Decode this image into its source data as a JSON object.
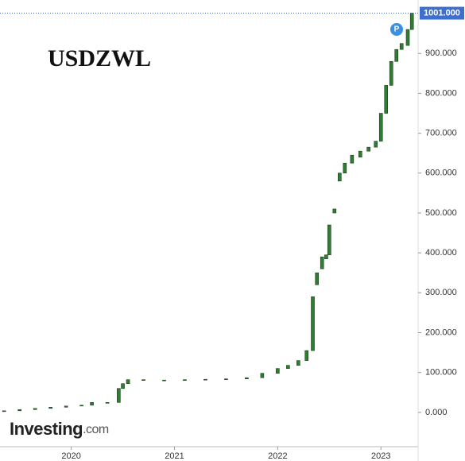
{
  "chart_data": {
    "type": "candlestick",
    "title": "USDZWL",
    "x": [
      2019.35,
      2019.5,
      2019.65,
      2019.8,
      2019.95,
      2020.1,
      2020.2,
      2020.35,
      2020.46,
      2020.5,
      2020.55,
      2020.7,
      2020.9,
      2021.1,
      2021.3,
      2021.5,
      2021.7,
      2021.85,
      2022.0,
      2022.1,
      2022.2,
      2022.28,
      2022.34,
      2022.38,
      2022.43,
      2022.47,
      2022.5,
      2022.55,
      2022.6,
      2022.65,
      2022.72,
      2022.8,
      2022.88,
      2022.95,
      2023.0,
      2023.05,
      2023.1,
      2023.15,
      2023.2,
      2023.26,
      2023.3
    ],
    "open": [
      2,
      4,
      7,
      10,
      13,
      16,
      18,
      25,
      25,
      60,
      72,
      82,
      81,
      81,
      82,
      83,
      84,
      87,
      98,
      110,
      118,
      130,
      155,
      320,
      360,
      385,
      395,
      500,
      580,
      600,
      625,
      640,
      655,
      665,
      680,
      750,
      820,
      880,
      910,
      920,
      960
    ],
    "close": [
      4,
      7,
      10,
      13,
      16,
      18,
      25,
      25,
      60,
      72,
      82,
      81,
      81,
      82,
      83,
      84,
      87,
      98,
      110,
      118,
      130,
      155,
      290,
      350,
      390,
      395,
      470,
      510,
      600,
      625,
      645,
      655,
      665,
      680,
      750,
      820,
      880,
      910,
      925,
      960,
      1001
    ],
    "up_color": "#2e7d32",
    "down_color": "#c62828",
    "xlim": [
      2019.31,
      2023.36
    ],
    "xticks": [
      2020,
      2021,
      2022,
      2023
    ],
    "ylim": [
      -86,
      1034
    ],
    "yticks": [
      {
        "value": 0,
        "label": "0.000"
      },
      {
        "value": 100,
        "label": "100.000"
      },
      {
        "value": 200,
        "label": "200.000"
      },
      {
        "value": 300,
        "label": "300.000"
      },
      {
        "value": 400,
        "label": "400.000"
      },
      {
        "value": 500,
        "label": "500.000"
      },
      {
        "value": 600,
        "label": "600.000"
      },
      {
        "value": 700,
        "label": "700.000"
      },
      {
        "value": 800,
        "label": "800.000"
      },
      {
        "value": 900,
        "label": "900.000"
      }
    ],
    "last_price": 1001,
    "last_price_label": "1001.000",
    "marker_label": "P",
    "watermark": [
      "Investing",
      ".com"
    ]
  }
}
